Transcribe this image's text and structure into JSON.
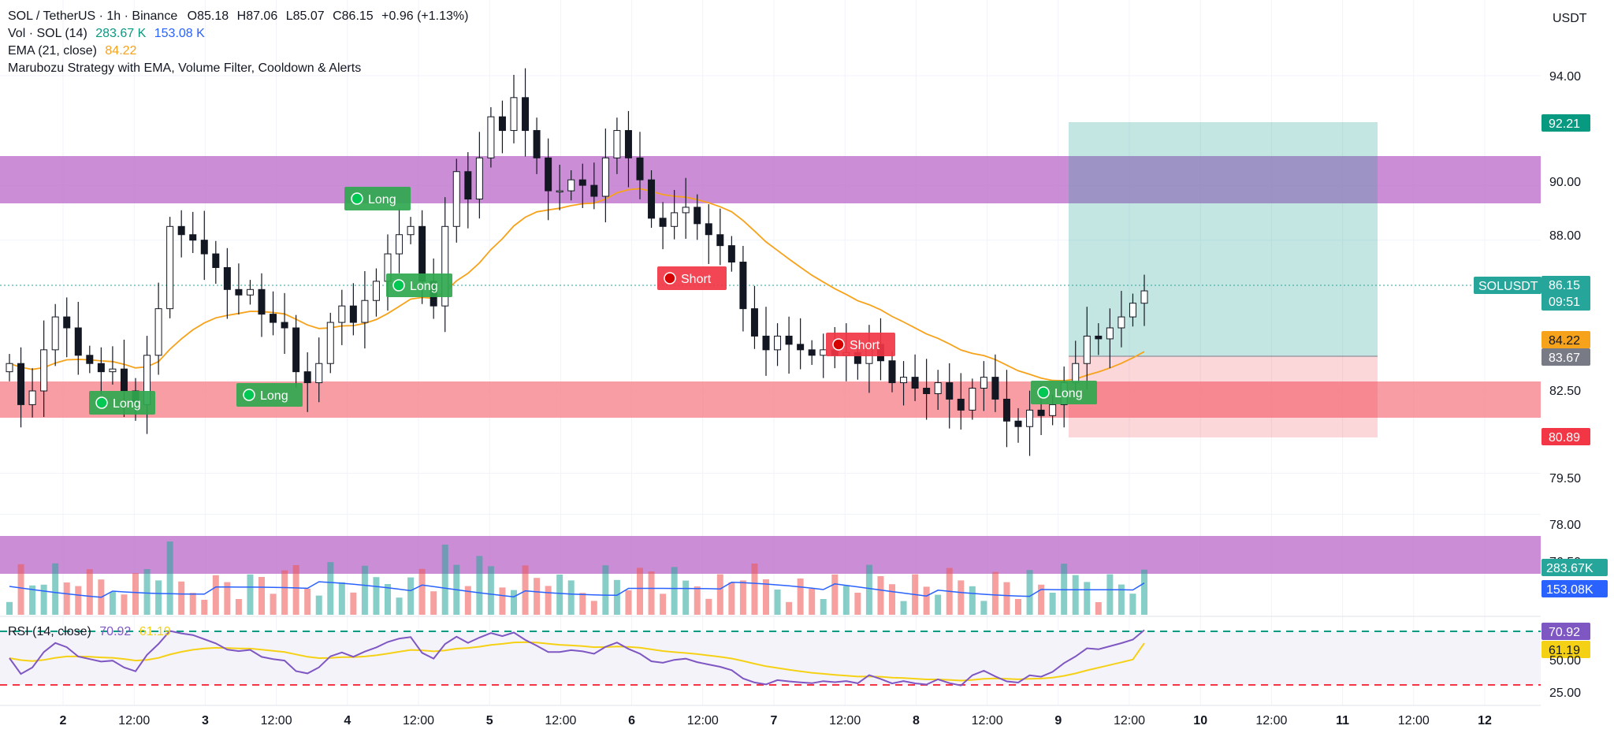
{
  "header": {
    "symbol": "SOL / TetherUS · 1h · Binance",
    "open_label": "O",
    "open": "85.18",
    "high_label": "H",
    "high": "87.06",
    "low_label": "L",
    "low": "85.07",
    "close_label": "C",
    "close": "86.15",
    "change": "+0.96 (+1.13%)"
  },
  "indicators": {
    "vol_label": "Vol · SOL (14)",
    "vol_value": "283.67 K",
    "vol_ma": "153.08 K",
    "ema_label": "EMA (21, close)",
    "ema_value": "84.22",
    "strategy_label": "Marubozu Strategy with EMA, Volume Filter, Cooldown & Alerts",
    "rsi_label": "RSI (14, close)",
    "rsi_value": "70.92",
    "rsi_ma": "61.19"
  },
  "price_axis": {
    "currency": "USDT",
    "ticks": [
      "94.00",
      "90.00",
      "88.00",
      "82.50",
      "79.50",
      "78.00"
    ],
    "tp_tag": "92.21",
    "price_tag_symbol": "SOLUSDT",
    "price_tag": "86.15",
    "countdown": "09:51",
    "ema_tag": "84.22",
    "entry_tag": "83.67",
    "sl_tag": "80.89",
    "vol_tag": "283.67K",
    "volma_tag": "153.08K",
    "rsi_ticks": [
      "50.00",
      "25.00"
    ],
    "rsi_tag": "70.92",
    "rsi_ma_tag": "61.19",
    "partial_tick": "76.50"
  },
  "time_axis": {
    "labels": [
      "2",
      "12:00",
      "3",
      "12:00",
      "4",
      "12:00",
      "5",
      "12:00",
      "6",
      "12:00",
      "7",
      "12:00",
      "8",
      "12:00",
      "9",
      "12:00",
      "10",
      "12:00",
      "11",
      "12:00",
      "12"
    ]
  },
  "signals": [
    {
      "label": "Long",
      "kind": "long"
    },
    {
      "label": "Long",
      "kind": "long"
    },
    {
      "label": "Long",
      "kind": "long"
    },
    {
      "label": "Long",
      "kind": "long"
    },
    {
      "label": "Short",
      "kind": "short"
    },
    {
      "label": "Short",
      "kind": "short"
    },
    {
      "label": "Long",
      "kind": "long"
    }
  ],
  "colors": {
    "up": "#26a69a",
    "down": "#ef5350",
    "candle": "#131722",
    "ema": "#f7a21b",
    "purple_zone": "#ba68c8",
    "red_zone": "#f77c85",
    "tp_zone": "#b2dfdb",
    "sl_zone": "#fbd0d4",
    "rsi_line": "#7e57c2",
    "rsi_ma": "#f5d116",
    "vol_ma": "#2962ff"
  },
  "chart_data": {
    "type": "candlestick",
    "symbol": "SOLUSDT",
    "interval": "1h",
    "ylim": [
      78,
      94.5
    ],
    "ema_last": 84.22,
    "close_last": 86.15,
    "resistance_zone": [
      89.3,
      90.9
    ],
    "support_zone": [
      81.5,
      82.8
    ],
    "position": {
      "side": "long",
      "entry": 83.67,
      "take_profit": 92.21,
      "stop_loss": 80.89
    },
    "closes": [
      83.5,
      82.0,
      82.5,
      84.0,
      85.2,
      84.8,
      83.8,
      83.5,
      83.2,
      83.3,
      82.5,
      82.0,
      83.8,
      85.5,
      88.5,
      88.2,
      88.0,
      87.5,
      87.0,
      86.2,
      86.0,
      86.2,
      85.3,
      85.0,
      84.8,
      83.2,
      82.8,
      83.5,
      85.0,
      85.6,
      85.0,
      85.8,
      86.5,
      87.5,
      88.2,
      88.5,
      86.5,
      85.6,
      88.5,
      90.5,
      89.5,
      91.0,
      92.5,
      92.0,
      93.2,
      92.0,
      91.0,
      89.8,
      89.8,
      90.2,
      90.0,
      89.6,
      91.0,
      92.0,
      91.0,
      90.2,
      88.8,
      88.5,
      89.0,
      89.2,
      88.6,
      88.2,
      87.8,
      87.2,
      85.5,
      84.5,
      84.0,
      84.5,
      84.2,
      84.0,
      83.8,
      84.0,
      83.8,
      83.9,
      83.5,
      84.2,
      83.6,
      82.8,
      83.0,
      82.6,
      82.4,
      82.8,
      82.2,
      81.8,
      82.6,
      83.0,
      82.2,
      81.4,
      81.2,
      81.8,
      81.6,
      82.0,
      82.8,
      83.5,
      84.5,
      84.4,
      84.8,
      85.2,
      85.7,
      86.15
    ],
    "rsi_last": 70.92,
    "rsi_ma_last": 61.19,
    "volume_last": "283.67K",
    "volume_ma_last": "153.08K"
  }
}
